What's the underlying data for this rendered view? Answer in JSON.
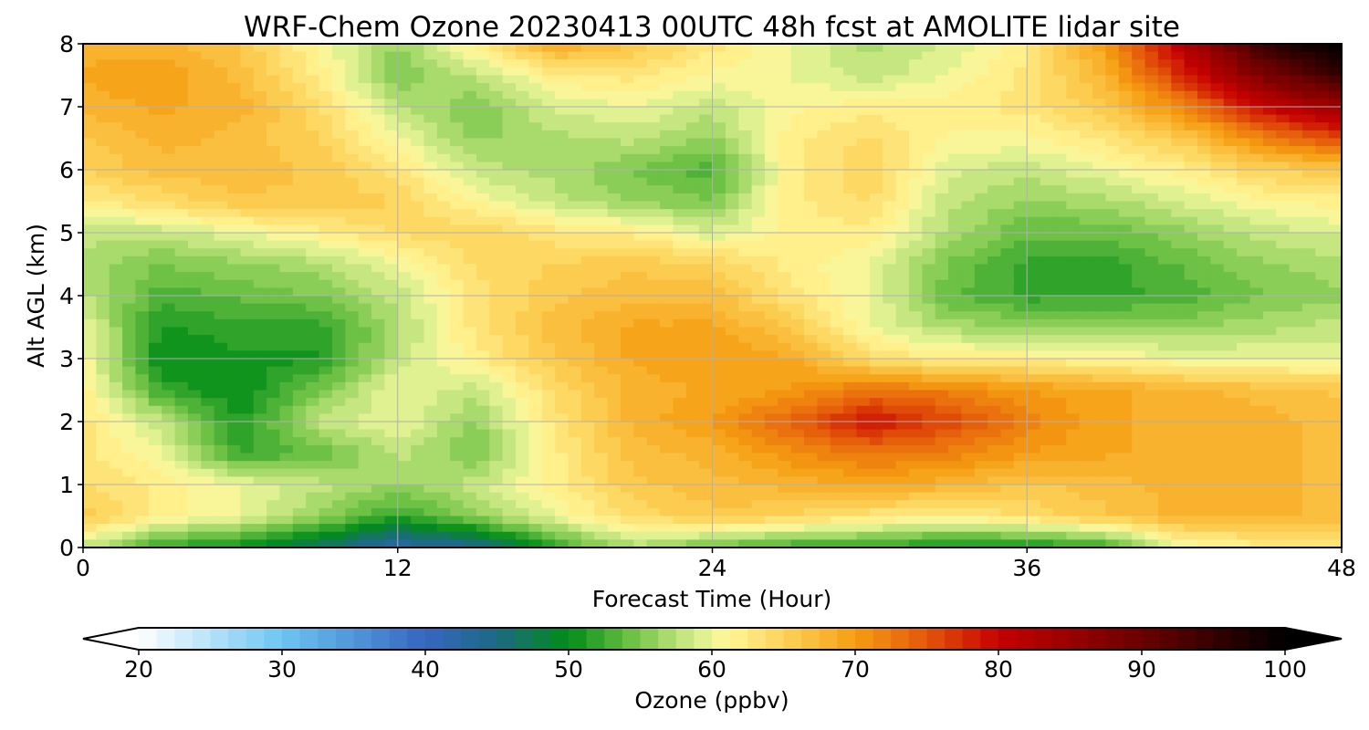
{
  "chart_data": {
    "type": "heatmap",
    "title": "WRF-Chem Ozone  20230413 00UTC 48h fcst at AMOLITE lidar site",
    "xlabel": "Forecast Time (Hour)",
    "ylabel": "Alt AGL (km)",
    "xlim": [
      0,
      48
    ],
    "ylim": [
      0,
      8
    ],
    "x_ticks": [
      0,
      12,
      24,
      36,
      48
    ],
    "y_ticks": [
      0,
      1,
      2,
      3,
      4,
      5,
      6,
      7,
      8
    ],
    "grid": true,
    "x": [
      0,
      3,
      6,
      9,
      12,
      15,
      18,
      21,
      24,
      27,
      30,
      33,
      36,
      39,
      42,
      45,
      48
    ],
    "y": [
      0,
      0.5,
      1,
      1.5,
      2,
      2.5,
      3,
      3.5,
      4,
      4.5,
      5,
      5.5,
      6,
      6.5,
      7,
      7.5,
      8
    ],
    "z": [
      [
        58,
        52,
        50,
        46,
        42,
        44,
        52,
        57,
        54,
        52,
        52,
        50,
        50,
        52,
        60,
        62,
        62
      ],
      [
        66,
        62,
        60,
        56,
        52,
        56,
        60,
        64,
        66,
        65,
        63,
        62,
        64,
        66,
        68,
        68,
        67
      ],
      [
        64,
        62,
        60,
        58,
        56,
        58,
        62,
        66,
        67,
        68,
        69,
        68,
        66,
        67,
        68,
        68,
        67
      ],
      [
        63,
        60,
        52,
        54,
        58,
        55,
        62,
        67,
        68,
        71,
        73,
        72,
        70,
        69,
        68,
        68,
        67
      ],
      [
        63,
        58,
        51,
        58,
        60,
        56,
        63,
        68,
        70,
        74,
        79,
        76,
        72,
        69,
        68,
        68,
        67
      ],
      [
        62,
        52,
        50,
        55,
        60,
        58,
        64,
        68,
        69,
        70,
        73,
        72,
        70,
        69,
        68,
        67,
        66
      ],
      [
        61,
        50,
        51,
        51,
        58,
        62,
        66,
        69,
        70,
        69,
        64,
        62,
        62,
        61,
        60,
        60,
        60
      ],
      [
        60,
        51,
        52,
        52,
        57,
        63,
        67,
        69,
        69,
        66,
        60,
        57,
        56,
        56,
        56,
        57,
        58
      ],
      [
        58,
        53,
        54,
        55,
        58,
        63,
        66,
        67,
        67,
        63,
        60,
        54,
        52,
        52,
        53,
        55,
        56
      ],
      [
        57,
        55,
        56,
        57,
        60,
        64,
        65,
        66,
        65,
        62,
        60,
        55,
        52,
        52,
        54,
        56,
        57
      ],
      [
        58,
        58,
        60,
        62,
        64,
        65,
        63,
        62,
        59,
        62,
        62,
        57,
        54,
        54,
        56,
        58,
        59
      ],
      [
        62,
        64,
        66,
        66,
        65,
        61,
        58,
        56,
        55,
        62,
        64,
        58,
        56,
        57,
        59,
        61,
        62
      ],
      [
        65,
        67,
        67,
        66,
        63,
        58,
        57,
        55,
        53,
        62,
        65,
        59,
        58,
        60,
        62,
        65,
        66
      ],
      [
        66,
        68,
        67,
        65,
        60,
        56,
        57,
        58,
        56,
        62,
        64,
        61,
        61,
        63,
        66,
        72,
        76
      ],
      [
        68,
        69,
        68,
        64,
        58,
        55,
        59,
        60,
        58,
        61,
        62,
        62,
        63,
        66,
        72,
        80,
        85
      ],
      [
        69,
        70,
        67,
        62,
        55,
        58,
        62,
        63,
        61,
        60,
        58,
        60,
        63,
        68,
        78,
        88,
        95
      ],
      [
        68,
        68,
        66,
        61,
        56,
        62,
        69,
        66,
        63,
        60,
        57,
        59,
        62,
        70,
        82,
        95,
        101
      ]
    ],
    "colorbar": {
      "label": "Ozone  (ppbv)",
      "min": 20,
      "max": 100,
      "ticks": [
        20,
        30,
        40,
        50,
        60,
        70,
        80,
        90,
        100
      ],
      "extend": "both",
      "color_stops": [
        {
          "v": 20,
          "c": "#ffffff"
        },
        {
          "v": 30,
          "c": "#6cc5f2"
        },
        {
          "v": 40,
          "c": "#3566c0"
        },
        {
          "v": 45,
          "c": "#1c6a84"
        },
        {
          "v": 50,
          "c": "#008c16"
        },
        {
          "v": 55,
          "c": "#7cc84c"
        },
        {
          "v": 59,
          "c": "#d9ef90"
        },
        {
          "v": 61,
          "c": "#fff89a"
        },
        {
          "v": 65,
          "c": "#fdd35a"
        },
        {
          "v": 70,
          "c": "#f59e12"
        },
        {
          "v": 75,
          "c": "#e4560a"
        },
        {
          "v": 80,
          "c": "#c60000"
        },
        {
          "v": 90,
          "c": "#6a0000"
        },
        {
          "v": 100,
          "c": "#000000"
        }
      ]
    }
  }
}
